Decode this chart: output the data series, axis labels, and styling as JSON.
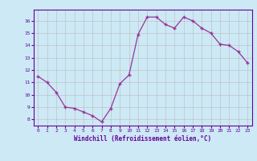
{
  "x": [
    0,
    1,
    2,
    3,
    4,
    5,
    6,
    7,
    8,
    9,
    10,
    11,
    12,
    13,
    14,
    15,
    16,
    17,
    18,
    19,
    20,
    21,
    22,
    23
  ],
  "y": [
    11.5,
    11.0,
    10.2,
    9.0,
    8.9,
    8.6,
    8.3,
    7.8,
    8.9,
    10.9,
    11.6,
    14.9,
    16.3,
    16.3,
    15.7,
    15.4,
    16.3,
    16.0,
    15.4,
    15.0,
    14.1,
    14.0,
    13.5,
    12.6
  ],
  "xlim": [
    -0.5,
    23.5
  ],
  "ylim": [
    7.5,
    16.9
  ],
  "yticks": [
    8,
    9,
    10,
    11,
    12,
    13,
    14,
    15,
    16
  ],
  "xticks": [
    0,
    1,
    2,
    3,
    4,
    5,
    6,
    7,
    8,
    9,
    10,
    11,
    12,
    13,
    14,
    15,
    16,
    17,
    18,
    19,
    20,
    21,
    22,
    23
  ],
  "xlabel": "Windchill (Refroidissement éolien,°C)",
  "line_color": "#993399",
  "marker": "+",
  "bg_color": "#cce9f5",
  "grid_color": "#bbbbbb",
  "label_color": "#660099",
  "axis_color": "#660099"
}
